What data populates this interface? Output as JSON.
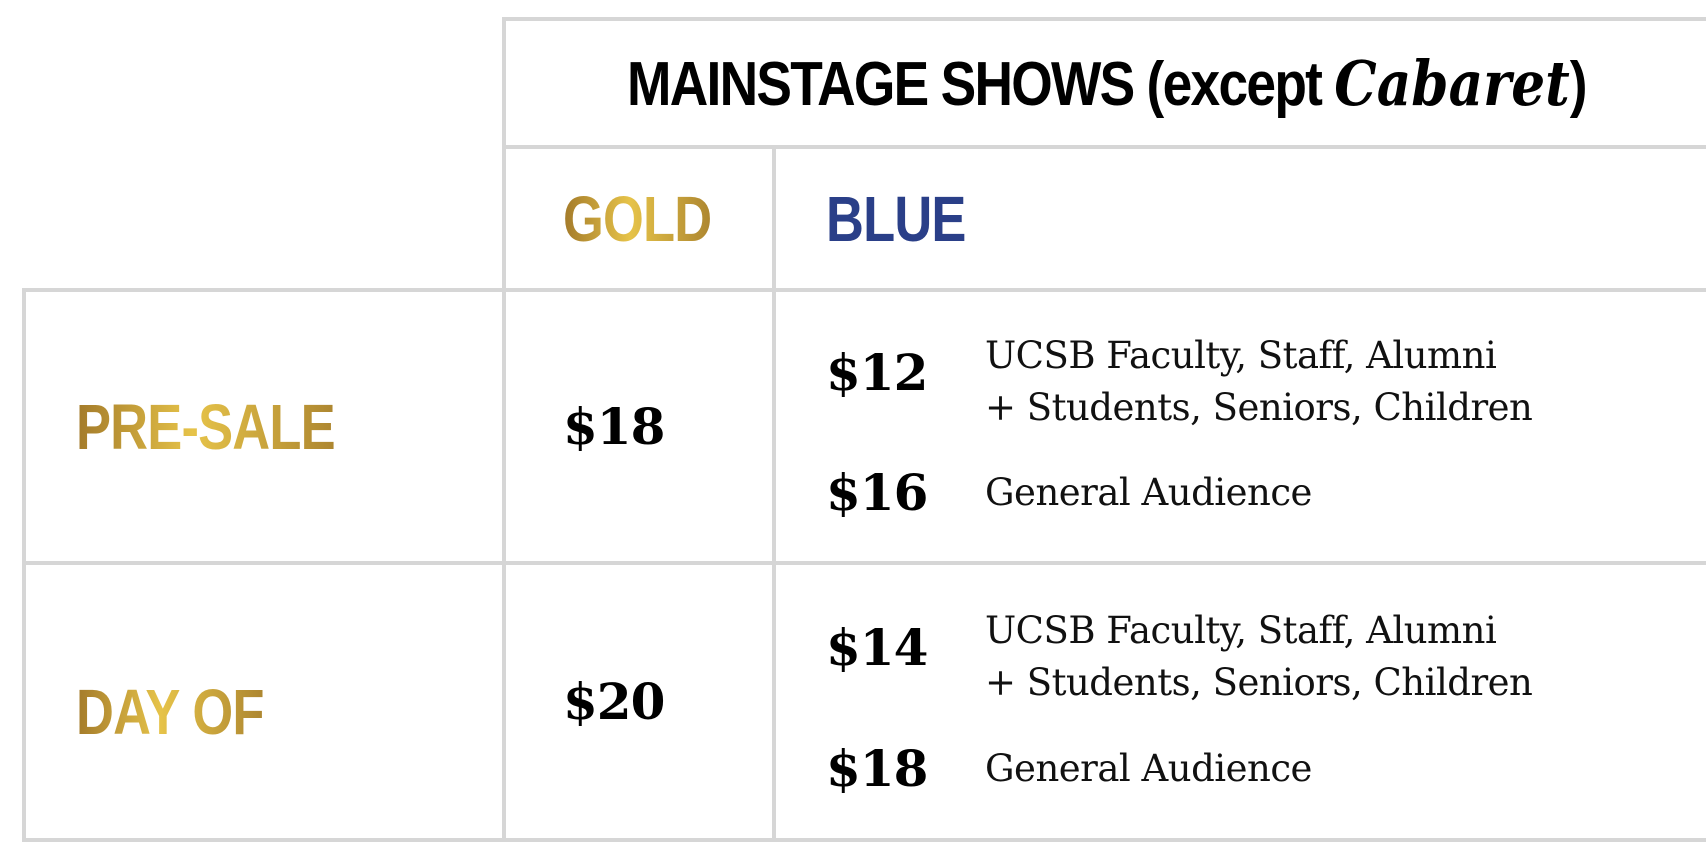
{
  "header": {
    "title_main": "MAINSTAGE SHOWS (except ",
    "title_italic": "Cabaret",
    "title_close": ")"
  },
  "columns": {
    "gold": "GOLD",
    "blue": "BLUE"
  },
  "colors": {
    "gold_start": "#a37a2a",
    "gold_mid": "#e6c349",
    "blue": "#2a3f88",
    "border": "#d6d6d6"
  },
  "rows": [
    {
      "label": "PRE-SALE",
      "gold_price": "$18",
      "blue": [
        {
          "price": "$12",
          "desc_line1": "UCSB Faculty, Staff, Alumni",
          "desc_line2": "+ Students, Seniors, Children"
        },
        {
          "price": "$16",
          "desc_line1": "General Audience"
        }
      ]
    },
    {
      "label": "DAY OF",
      "gold_price": "$20",
      "blue": [
        {
          "price": "$14",
          "desc_line1": "UCSB Faculty, Staff, Alumni",
          "desc_line2": "+ Students, Seniors, Children"
        },
        {
          "price": "$18",
          "desc_line1": "General Audience"
        }
      ]
    }
  ]
}
